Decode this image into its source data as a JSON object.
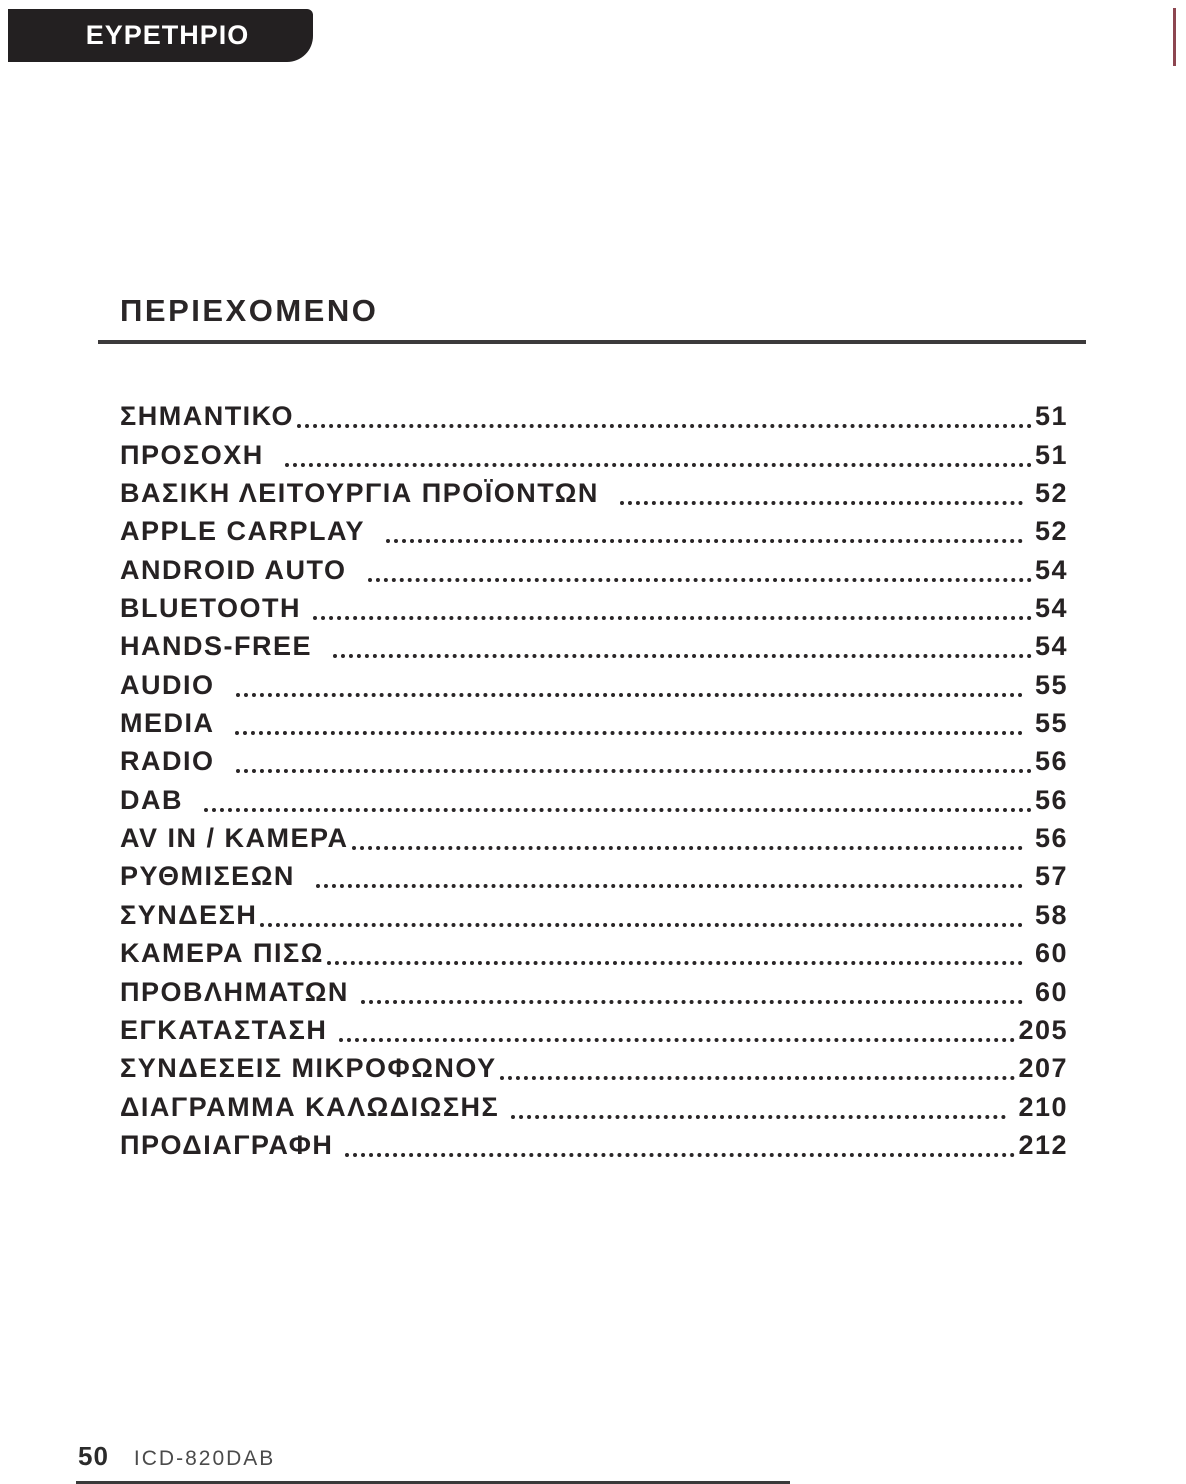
{
  "banner": {
    "label": "ΕΥΡΕΤΗΡΙΟ"
  },
  "section": {
    "title": "ΠΕΡΙΕΧΟΜΕΝΟ"
  },
  "toc": {
    "entries": [
      {
        "label": "ΣΗΜΑΝΤΙΚΟ",
        "page": "51"
      },
      {
        "label": "ΠΡΟΣΟΧΗ  ",
        "page": "51"
      },
      {
        "label": "ΒΑΣΙΚΗ ΛΕΙΤΟΥΡΓΙΑ ΠΡΟΪΟΝΤΩΝ  ",
        "page": " 52"
      },
      {
        "label": "APPLE CARPLAY  ",
        "page": " 52"
      },
      {
        "label": "ANDROID AUTO  ",
        "page": "54"
      },
      {
        "label": "BLUETOOTH ",
        "page": "54"
      },
      {
        "label": "HANDS-FREE  ",
        "page": "54"
      },
      {
        "label": "AUDIO  ",
        "page": " 55"
      },
      {
        "label": "MEDIA  ",
        "page": " 55"
      },
      {
        "label": "RADIO  ",
        "page": "56"
      },
      {
        "label": "DAB  ",
        "page": "56"
      },
      {
        "label": "AV IN / ΚΑΜΕΡΑ",
        "page": " 56"
      },
      {
        "label": "ΡΥΘΜΙΣΕΩΝ  ",
        "page": " 57"
      },
      {
        "label": "ΣΥΝΔΕΣΗ",
        "page": " 58"
      },
      {
        "label": "ΚΑΜΕΡΑ ΠΙΣΩ",
        "page": " 60"
      },
      {
        "label": "ΠΡΟΒΛΗΜΑΤΩΝ ",
        "page": " 60"
      },
      {
        "label": "ΕΓΚΑΤΑΣΤΑΣΗ ",
        "page": "205"
      },
      {
        "label": "ΣΥΝΔΕΣΕΙΣ ΜΙΚΡΟΦΩΝΟΥ",
        "page": "207"
      },
      {
        "label": "ΔΙΑΓΡΑΜΜΑ ΚΑΛΩΔΙΩΣΗΣ ",
        "page": " 210"
      },
      {
        "label": "ΠΡΟΔΙΑΓΡΑΦΗ ",
        "page": "212"
      }
    ]
  },
  "footer": {
    "page_number": "50",
    "model": "ICD-820DAB"
  },
  "colors": {
    "banner_bg": "#232021",
    "accent_line": "#8d4650",
    "text": "#262223",
    "rule": "#3c3a3b"
  }
}
